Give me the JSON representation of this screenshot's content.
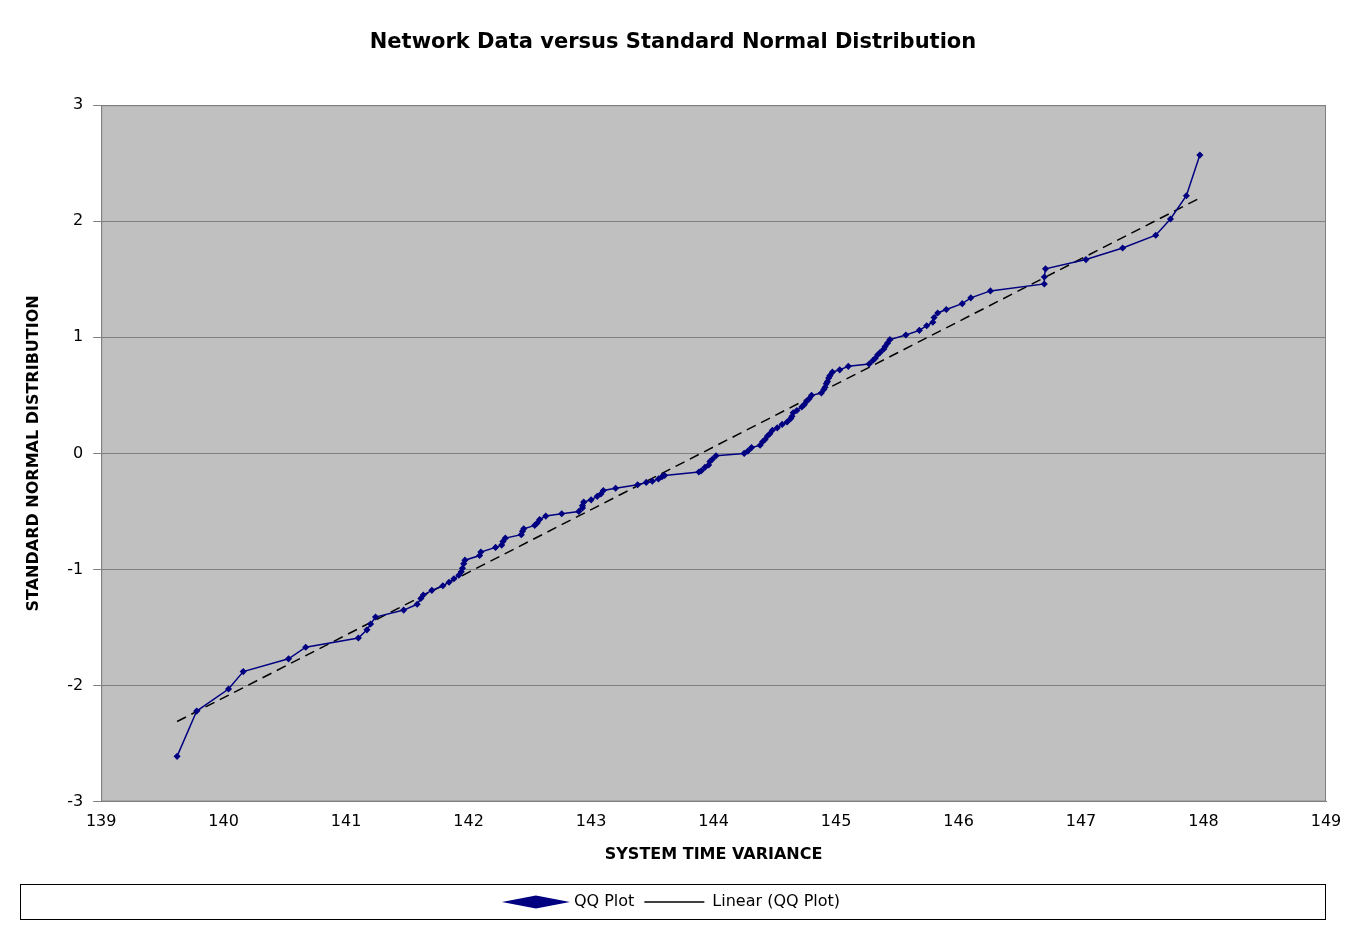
{
  "chart_data": {
    "type": "scatter",
    "title": "Network Data versus Standard Normal Distribution",
    "x_label": "SYSTEM TIME VARIANCE",
    "y_label": "STANDARD NORMAL DISTRIBUTION",
    "xlim": [
      139,
      149
    ],
    "xticks": [
      139,
      140,
      141,
      142,
      143,
      144,
      145,
      146,
      147,
      148,
      149
    ],
    "ylim": [
      -3,
      3
    ],
    "yticks": [
      -3,
      -2,
      -1,
      0,
      1,
      2,
      3
    ],
    "grid": "y",
    "legend": "bottom",
    "series": [
      {
        "name": "QQ Plot",
        "color": "#000080",
        "marker": "diamond",
        "line_style": "solid",
        "x": [
          139.62,
          139.78,
          140.04,
          140.16,
          140.53,
          140.67,
          141.1,
          141.17,
          141.2,
          141.24,
          141.47,
          141.58,
          141.61,
          141.63,
          141.7,
          141.79,
          141.84,
          141.88,
          141.92,
          141.94,
          141.95,
          141.96,
          141.97,
          142.09,
          142.1,
          142.22,
          142.27,
          142.28,
          142.3,
          142.43,
          142.44,
          142.45,
          142.54,
          142.56,
          142.58,
          142.63,
          142.76,
          142.9,
          142.93,
          142.93,
          142.94,
          143.0,
          143.05,
          143.08,
          143.1,
          143.2,
          143.38,
          143.45,
          143.5,
          143.55,
          143.58,
          143.6,
          143.88,
          143.9,
          143.93,
          143.96,
          143.97,
          143.99,
          144.02,
          144.25,
          144.28,
          144.31,
          144.38,
          144.4,
          144.42,
          144.44,
          144.46,
          144.48,
          144.52,
          144.56,
          144.6,
          144.63,
          144.64,
          144.65,
          144.68,
          144.72,
          144.74,
          144.76,
          144.78,
          144.8,
          144.88,
          144.9,
          144.91,
          144.92,
          144.93,
          144.94,
          144.95,
          144.97,
          145.03,
          145.1,
          145.27,
          145.3,
          145.32,
          145.34,
          145.36,
          145.39,
          145.4,
          145.42,
          145.44,
          145.57,
          145.68,
          145.74,
          145.79,
          145.8,
          145.83,
          145.9,
          146.03,
          146.1,
          146.26,
          146.7,
          146.7,
          146.71,
          147.04,
          147.34,
          147.61,
          147.73,
          147.86,
          147.97
        ],
        "values": [
          -2.61,
          -2.22,
          -2.03,
          -1.88,
          -1.77,
          -1.67,
          -1.59,
          -1.52,
          -1.47,
          -1.41,
          -1.35,
          -1.3,
          -1.25,
          -1.22,
          -1.18,
          -1.14,
          -1.11,
          -1.08,
          -1.05,
          -1.02,
          -0.99,
          -0.95,
          -0.92,
          -0.88,
          -0.85,
          -0.81,
          -0.79,
          -0.76,
          -0.73,
          -0.7,
          -0.67,
          -0.65,
          -0.62,
          -0.6,
          -0.57,
          -0.54,
          -0.52,
          -0.5,
          -0.47,
          -0.45,
          -0.42,
          -0.4,
          -0.37,
          -0.35,
          -0.32,
          -0.3,
          -0.27,
          -0.25,
          -0.24,
          -0.22,
          -0.2,
          -0.19,
          -0.16,
          -0.15,
          -0.12,
          -0.1,
          -0.07,
          -0.05,
          -0.02,
          0.0,
          0.02,
          0.05,
          0.07,
          0.1,
          0.12,
          0.15,
          0.17,
          0.2,
          0.22,
          0.25,
          0.27,
          0.3,
          0.32,
          0.35,
          0.37,
          0.4,
          0.42,
          0.45,
          0.47,
          0.5,
          0.52,
          0.55,
          0.57,
          0.6,
          0.62,
          0.65,
          0.67,
          0.7,
          0.72,
          0.75,
          0.77,
          0.8,
          0.82,
          0.85,
          0.87,
          0.9,
          0.92,
          0.95,
          0.98,
          1.02,
          1.06,
          1.1,
          1.13,
          1.17,
          1.21,
          1.24,
          1.29,
          1.34,
          1.4,
          1.46,
          1.52,
          1.59,
          1.67,
          1.77,
          1.88,
          2.02,
          2.22,
          2.57
        ]
      },
      {
        "name": "Linear (QQ Plot)",
        "color": "#000000",
        "marker": "none",
        "line_style": "dashed",
        "x": [
          139.62,
          147.97
        ],
        "values": [
          -2.31,
          2.2
        ]
      }
    ]
  }
}
